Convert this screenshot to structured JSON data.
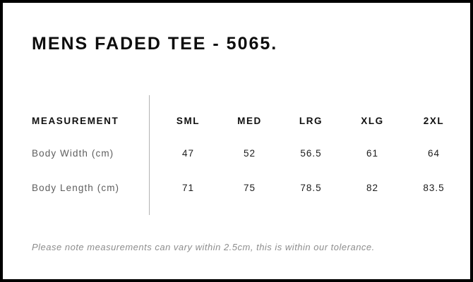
{
  "page": {
    "title": "MENS FADED TEE - 5065.",
    "tolerance_note": "Please note measurements can vary within 2.5cm, this is within our tolerance."
  },
  "size_chart": {
    "columns": [
      "MEASUREMENT",
      "SML",
      "MED",
      "LRG",
      "XLG",
      "2XL"
    ],
    "rows": [
      {
        "label": "Body Width (cm)",
        "values": [
          "47",
          "52",
          "56.5",
          "61",
          "64"
        ]
      },
      {
        "label": "Body Length (cm)",
        "values": [
          "71",
          "75",
          "78.5",
          "82",
          "83.5"
        ]
      }
    ]
  },
  "colors": {
    "background": "#ffffff",
    "frame": "#000000",
    "title_text": "#0d0d0d",
    "header_text": "#101010",
    "value_text": "#1c1c1c",
    "row_label_text": "#5e5e5e",
    "divider": "#b3b3b3",
    "note_text": "#8d8d8d"
  }
}
